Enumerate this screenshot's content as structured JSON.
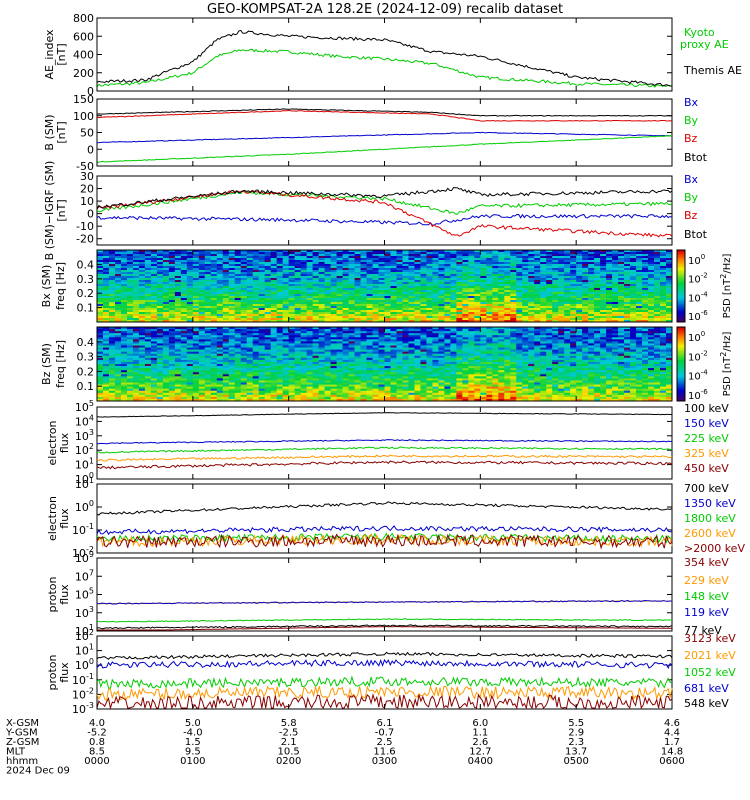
{
  "title": "GEO-KOMPSAT-2A 128.2E (2024-12-09) recalib dataset",
  "date_label": "2024 Dec 09",
  "ephemeris": {
    "labels": [
      "X-GSM",
      "Y-GSM",
      "Z-GSM",
      "MLT",
      "hhmm"
    ],
    "rows": [
      [
        "4.0",
        "5.0",
        "5.8",
        "6.1",
        "6.0",
        "5.5",
        "4.6"
      ],
      [
        "-5.2",
        "-4.0",
        "-2.5",
        "-0.7",
        "1.1",
        "2.9",
        "4.4"
      ],
      [
        "0.8",
        "1.5",
        "2.1",
        "2.5",
        "2.6",
        "2.3",
        "1.7"
      ],
      [
        "8.5",
        "9.5",
        "10.5",
        "11.6",
        "12.7",
        "13.7",
        "14.8"
      ],
      [
        "0000",
        "0100",
        "0200",
        "0300",
        "0400",
        "0500",
        "0600"
      ]
    ]
  },
  "chart_data": [
    {
      "type": "line",
      "ylabel": "AE_index [nT]",
      "ylim": [
        0,
        800
      ],
      "yticks": [
        "0",
        "200",
        "400",
        "600",
        "800"
      ],
      "series": [
        {
          "name": "Kyoto proxy AE",
          "color": "#00cc00",
          "x": [
            "0000",
            "0030",
            "0100",
            "0115",
            "0130",
            "0200",
            "0230",
            "0300",
            "0330",
            "0400",
            "0500",
            "0600"
          ],
          "values": [
            60,
            90,
            200,
            380,
            450,
            430,
            380,
            350,
            300,
            150,
            80,
            50
          ]
        },
        {
          "name": "Themis AE",
          "color": "#000000",
          "x": [
            "0000",
            "0030",
            "0100",
            "0115",
            "0130",
            "0200",
            "0230",
            "0300",
            "0330",
            "0400",
            "0500",
            "0600"
          ],
          "values": [
            100,
            120,
            320,
            560,
            650,
            600,
            580,
            560,
            430,
            380,
            150,
            60
          ]
        }
      ]
    },
    {
      "type": "line",
      "ylabel": "B (SM) [nT]",
      "ylim": [
        -50,
        150
      ],
      "yticks": [
        "-50",
        "0",
        "50",
        "100",
        "150"
      ],
      "legend": [
        "Bx",
        "By",
        "Bz",
        "Btot"
      ],
      "series": [
        {
          "name": "Bx",
          "color": "#0000cc",
          "x": [
            "0000",
            "0200",
            "0400",
            "0600"
          ],
          "values": [
            20,
            35,
            50,
            40
          ]
        },
        {
          "name": "By",
          "color": "#00cc00",
          "x": [
            "0000",
            "0200",
            "0400",
            "0600"
          ],
          "values": [
            -38,
            -15,
            15,
            40
          ]
        },
        {
          "name": "Bz",
          "color": "#dd0000",
          "x": [
            "0000",
            "0200",
            "0330",
            "0400",
            "0600"
          ],
          "values": [
            95,
            115,
            105,
            85,
            85
          ]
        },
        {
          "name": "Btot",
          "color": "#000000",
          "x": [
            "0000",
            "0200",
            "0330",
            "0400",
            "0600"
          ],
          "values": [
            105,
            120,
            110,
            100,
            100
          ]
        }
      ]
    },
    {
      "type": "line",
      "ylabel": "B (SM)-IGRF (SM) [nT]",
      "ylim": [
        -25,
        30
      ],
      "yticks": [
        "-20",
        "-10",
        "0",
        "10",
        "20",
        "30"
      ],
      "legend": [
        "Bx",
        "By",
        "Bz",
        "Btot"
      ],
      "series": [
        {
          "name": "Bx",
          "color": "#0000cc",
          "x": [
            "0000",
            "0200",
            "0330",
            "0400",
            "0600"
          ],
          "values": [
            -3,
            -5,
            -8,
            -2,
            -2
          ]
        },
        {
          "name": "By",
          "color": "#00cc00",
          "x": [
            "0000",
            "0130",
            "0300",
            "0345",
            "0400",
            "0600"
          ],
          "values": [
            2,
            17,
            12,
            0,
            6,
            8
          ]
        },
        {
          "name": "Bz",
          "color": "#dd0000",
          "x": [
            "0000",
            "0130",
            "0300",
            "0345",
            "0400",
            "0600"
          ],
          "values": [
            4,
            18,
            9,
            -18,
            -10,
            -18
          ]
        },
        {
          "name": "Btot",
          "color": "#000000",
          "x": [
            "0000",
            "0130",
            "0300",
            "0345",
            "0400",
            "0600"
          ],
          "values": [
            5,
            18,
            14,
            20,
            15,
            18
          ]
        }
      ]
    },
    {
      "type": "heatmap",
      "ylabel": "Bx (SM) freq [Hz]",
      "ylim": [
        0.0,
        0.5
      ],
      "yticks": [
        "0.1",
        "0.2",
        "0.3",
        "0.4"
      ],
      "colorbar_label": "PSD [nT^2/Hz]",
      "colorbar_ticks": [
        "10^0",
        "10^-2",
        "10^-4",
        "10^-6"
      ]
    },
    {
      "type": "heatmap",
      "ylabel": "Bz (SM) freq [Hz]",
      "ylim": [
        0.0,
        0.5
      ],
      "yticks": [
        "0.1",
        "0.2",
        "0.3",
        "0.4"
      ],
      "colorbar_label": "PSD [nT^2/Hz]",
      "colorbar_ticks": [
        "10^0",
        "10^-2",
        "10^-4",
        "10^-6"
      ]
    },
    {
      "type": "line",
      "ylabel": "electron flux",
      "scale": "log",
      "yticks": [
        "10^0",
        "10^1",
        "10^2",
        "10^3",
        "10^4",
        "10^5"
      ],
      "legend": [
        "100 keV",
        "150 keV",
        "225 keV",
        "325 keV",
        "450 keV"
      ],
      "series": [
        {
          "name": "100 keV",
          "color": "#000000",
          "values": [
            20000,
            40000,
            30000
          ]
        },
        {
          "name": "150 keV",
          "color": "#0000cc",
          "values": [
            300,
            500,
            400
          ]
        },
        {
          "name": "225 keV",
          "color": "#00cc00",
          "values": [
            70,
            150,
            120
          ]
        },
        {
          "name": "325 keV",
          "color": "#ff9900",
          "values": [
            20,
            40,
            35
          ]
        },
        {
          "name": "450 keV",
          "color": "#880000",
          "values": [
            6,
            15,
            12
          ]
        }
      ]
    },
    {
      "type": "line",
      "ylabel": "electron flux",
      "scale": "log",
      "yticks": [
        "10^-2",
        "10^-1",
        "10^0",
        "10^1"
      ],
      "legend": [
        "700 keV",
        "1350 keV",
        "1800 keV",
        "2600 keV",
        ">2000 keV"
      ],
      "series": [
        {
          "name": "700 keV",
          "color": "#000000",
          "values": [
            0.5,
            1.5,
            0.8
          ]
        },
        {
          "name": "1350 keV",
          "color": "#0000cc",
          "values": [
            0.08,
            0.12,
            0.1
          ]
        },
        {
          "name": "1800 keV",
          "color": "#00cc00",
          "values": [
            0.04,
            0.05,
            0.04
          ]
        },
        {
          "name": "2600 keV",
          "color": "#ff9900",
          "values": [
            0.03,
            0.04,
            0.03
          ]
        },
        {
          "name": ">2000 keV",
          "color": "#880000",
          "values": [
            0.03,
            0.035,
            0.03
          ]
        }
      ]
    },
    {
      "type": "line",
      "ylabel": "proton flux",
      "scale": "log",
      "yticks": [
        "10^1",
        "10^3",
        "10^5",
        "10^7",
        "10^9"
      ],
      "legend": [
        "354 keV",
        "229 keV",
        "148 keV",
        "119 keV",
        "77 keV"
      ],
      "series": [
        {
          "name": "354 keV",
          "color": "#880000",
          "values": [
            10,
            30,
            20
          ]
        },
        {
          "name": "229 keV",
          "color": "#ff9900",
          "values": [
            10000,
            15000,
            20000
          ]
        },
        {
          "name": "148 keV",
          "color": "#00cc00",
          "values": [
            100,
            200,
            150
          ]
        },
        {
          "name": "119 keV",
          "color": "#0000cc",
          "values": [
            10000,
            15000,
            20000
          ]
        },
        {
          "name": "77 keV",
          "color": "#000000",
          "values": [
            20,
            40,
            30
          ]
        }
      ]
    },
    {
      "type": "line",
      "ylabel": "proton flux",
      "scale": "log",
      "yticks": [
        "10^-3",
        "10^-2",
        "10^-1",
        "10^0",
        "10^1",
        "10^2"
      ],
      "legend": [
        "3123 keV",
        "2021 keV",
        "1052 keV",
        "681 keV",
        "548 keV"
      ],
      "series": [
        {
          "name": "548 keV",
          "color": "#000000",
          "values": [
            3,
            6,
            4
          ]
        },
        {
          "name": "681 keV",
          "color": "#0000cc",
          "values": [
            1,
            1.5,
            1
          ]
        },
        {
          "name": "1052 keV",
          "color": "#00cc00",
          "values": [
            0.05,
            0.08,
            0.06
          ]
        },
        {
          "name": "2021 keV",
          "color": "#ff9900",
          "values": [
            0.01,
            0.015,
            0.012
          ]
        },
        {
          "name": "3123 keV",
          "color": "#880000",
          "values": [
            0.002,
            0.003,
            0.0025
          ]
        }
      ]
    }
  ]
}
